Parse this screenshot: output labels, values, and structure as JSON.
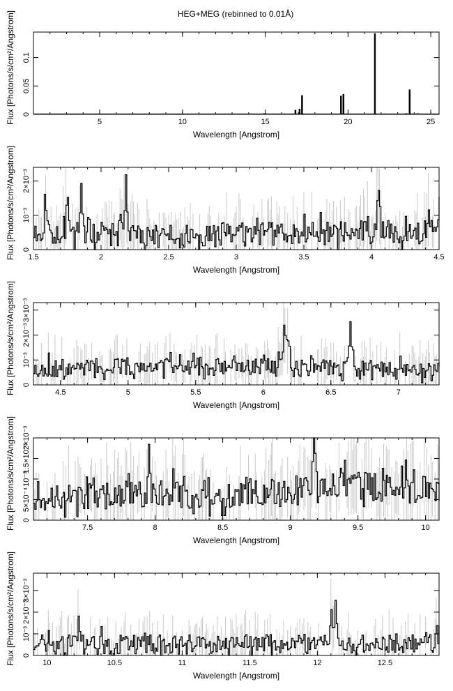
{
  "figure": {
    "title": "HEG+MEG (rebinned to 0.01Å)"
  },
  "chart_data": [
    {
      "type": "line",
      "xlabel": "Wavelength [Angstrom]",
      "ylabel": "Flux [Photons/s/cm²/Angstrom]",
      "xlim": [
        1.0,
        25.5
      ],
      "ylim": [
        0,
        0.145
      ],
      "xticks": [
        {
          "v": 5,
          "label": "5"
        },
        {
          "v": 10,
          "label": "10"
        },
        {
          "v": 15,
          "label": "15"
        },
        {
          "v": 20,
          "label": "20"
        },
        {
          "v": 25,
          "label": "25"
        }
      ],
      "yticks": [
        {
          "v": 0,
          "label": "0"
        },
        {
          "v": 0.05,
          "label": "0.05"
        },
        {
          "v": 0.1,
          "label": "0.1"
        }
      ],
      "baseline": 0.0006,
      "lines": [
        [
          14.9,
          0.001
        ],
        [
          16.78,
          0.007
        ],
        [
          17.05,
          0.009
        ],
        [
          17.2,
          0.033
        ],
        [
          19.55,
          0.032
        ],
        [
          19.7,
          0.035
        ],
        [
          21.6,
          0.142
        ],
        [
          23.5,
          0.001
        ],
        [
          23.7,
          0.043
        ],
        [
          24.2,
          0.001
        ]
      ]
    },
    {
      "type": "line",
      "xlabel": "Wavelength [Angstrom]",
      "ylabel": "Flux [Photons/s/cm²/Angstrom]",
      "xlim": [
        1.5,
        4.5
      ],
      "ylim": [
        0,
        0.0024
      ],
      "xticks": [
        {
          "v": 1.5,
          "label": "1.5"
        },
        {
          "v": 2,
          "label": "2"
        },
        {
          "v": 2.5,
          "label": "2.5"
        },
        {
          "v": 3,
          "label": "3"
        },
        {
          "v": 3.5,
          "label": "3.5"
        },
        {
          "v": 4,
          "label": "4"
        },
        {
          "v": 4.5,
          "label": "4.5"
        }
      ],
      "yticks": [
        {
          "v": 0,
          "label": "0"
        },
        {
          "v": 0.001,
          "label": "10⁻³"
        },
        {
          "v": 0.002,
          "label": "2×10⁻³"
        }
      ],
      "continuum": [
        [
          1.5,
          0.0005
        ],
        [
          2.5,
          0.00035
        ],
        [
          3.0,
          0.0004
        ],
        [
          4.5,
          0.0005
        ]
      ],
      "noise": 0.00035,
      "lines": [
        [
          1.59,
          0.00095
        ],
        [
          1.75,
          0.00095
        ],
        [
          1.85,
          0.00145
        ],
        [
          2.18,
          0.00145
        ],
        [
          4.05,
          0.0012
        ],
        [
          4.5,
          0.001
        ]
      ],
      "seed": 11
    },
    {
      "type": "line",
      "xlabel": "Wavelength [Angstrom]",
      "ylabel": "Flux [Photons/s/cm²/Angstrom]",
      "xlim": [
        4.3,
        7.3
      ],
      "ylim": [
        0,
        0.0033
      ],
      "xticks": [
        {
          "v": 4.5,
          "label": "4.5"
        },
        {
          "v": 5,
          "label": "5"
        },
        {
          "v": 5.5,
          "label": "5.5"
        },
        {
          "v": 6,
          "label": "6"
        },
        {
          "v": 6.5,
          "label": "6.5"
        },
        {
          "v": 7,
          "label": "7"
        }
      ],
      "yticks": [
        {
          "v": 0,
          "label": "0"
        },
        {
          "v": 0.001,
          "label": "10⁻³"
        },
        {
          "v": 0.002,
          "label": "2×10⁻³"
        },
        {
          "v": 0.003,
          "label": "3×10⁻³"
        }
      ],
      "continuum": [
        [
          4.3,
          0.0006
        ],
        [
          5.2,
          0.00075
        ],
        [
          6.0,
          0.00065
        ],
        [
          7.3,
          0.0006
        ]
      ],
      "noise": 0.00035,
      "lines": [
        [
          6.15,
          0.0019
        ],
        [
          6.18,
          0.0015
        ],
        [
          6.64,
          0.0015
        ],
        [
          6.0,
          0.0006
        ]
      ],
      "seed": 23
    },
    {
      "type": "line",
      "xlabel": "Wavelength [Angstrom]",
      "ylabel": "Flux [Photons/s/cm²/Angstrom]",
      "xlim": [
        7.1,
        10.1
      ],
      "ylim": [
        0,
        0.002
      ],
      "xticks": [
        {
          "v": 7.5,
          "label": "7.5"
        },
        {
          "v": 8,
          "label": "8"
        },
        {
          "v": 8.5,
          "label": "8.5"
        },
        {
          "v": 9,
          "label": "9"
        },
        {
          "v": 9.5,
          "label": "9.5"
        },
        {
          "v": 10,
          "label": "10"
        }
      ],
      "yticks": [
        {
          "v": 0,
          "label": "0"
        },
        {
          "v": 0.0005,
          "label": "5×10⁻⁴"
        },
        {
          "v": 0.001,
          "label": "10⁻³"
        },
        {
          "v": 0.0015,
          "label": "1.5×10⁻³"
        },
        {
          "v": 0.002,
          "label": "2×10⁻³"
        }
      ],
      "continuum": [
        [
          7.1,
          0.00055
        ],
        [
          8.4,
          0.0006
        ],
        [
          9.0,
          0.00065
        ],
        [
          9.3,
          0.00085
        ],
        [
          10.1,
          0.00065
        ]
      ],
      "noise": 0.00035,
      "lines": [
        [
          7.95,
          0.0006
        ],
        [
          8.38,
          0.0005
        ],
        [
          9.17,
          0.00095
        ],
        [
          9.4,
          0.0006
        ],
        [
          9.85,
          0.0005
        ]
      ],
      "seed": 37
    },
    {
      "type": "line",
      "xlabel": "Wavelength [Angstrom]",
      "ylabel": "Flux [Photons/s/cm²/Angstrom]",
      "xlim": [
        9.9,
        12.9
      ],
      "ylim": [
        0,
        0.0038
      ],
      "xticks": [
        {
          "v": 10,
          "label": "10"
        },
        {
          "v": 10.5,
          "label": "10.5"
        },
        {
          "v": 11,
          "label": "11"
        },
        {
          "v": 11.5,
          "label": "11.5"
        },
        {
          "v": 12,
          "label": "12"
        },
        {
          "v": 12.5,
          "label": "12.5"
        }
      ],
      "yticks": [
        {
          "v": 0,
          "label": "0"
        },
        {
          "v": 0.001,
          "label": "10⁻³"
        },
        {
          "v": 0.002,
          "label": "2×10⁻³"
        },
        {
          "v": 0.003,
          "label": "3×10⁻³"
        }
      ],
      "continuum": [
        [
          9.9,
          0.00045
        ],
        [
          11.0,
          0.00045
        ],
        [
          12.0,
          0.0005
        ],
        [
          12.9,
          0.00055
        ]
      ],
      "noise": 0.00045,
      "lines": [
        [
          12.13,
          0.0018
        ],
        [
          12.1,
          0.0012
        ],
        [
          10.23,
          0.0006
        ],
        [
          12.8,
          0.0006
        ]
      ],
      "seed": 51
    }
  ]
}
